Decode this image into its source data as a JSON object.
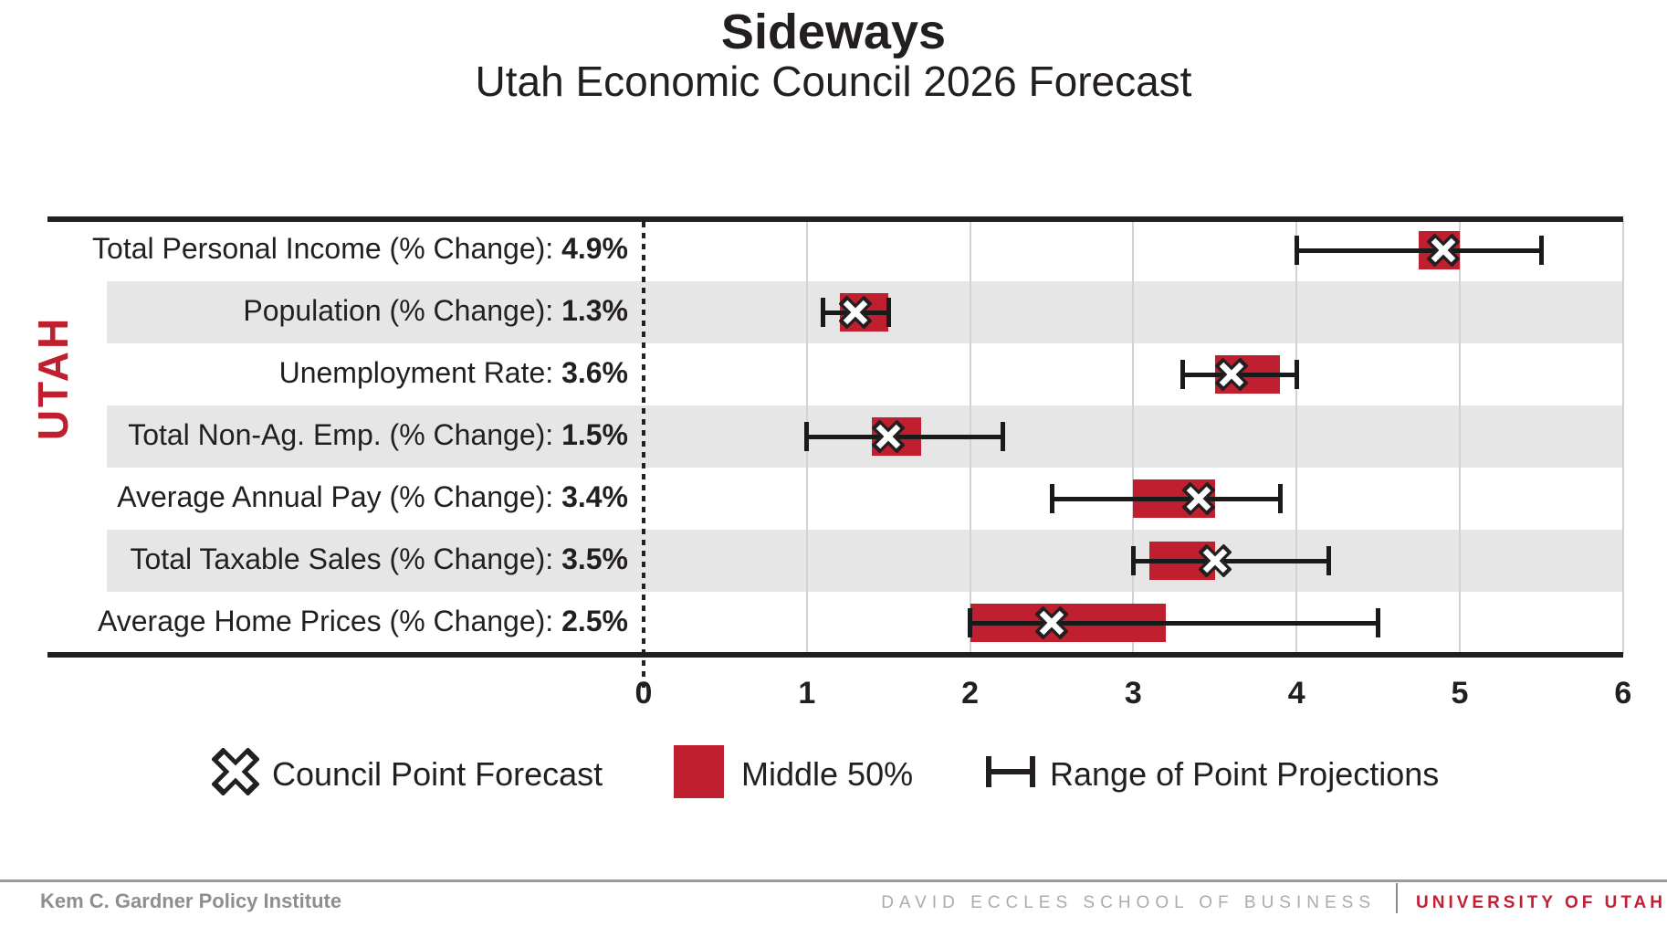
{
  "header": {
    "title": "Sideways",
    "subtitle": "Utah Economic Council 2026 Forecast"
  },
  "region_label": "UTAH",
  "colors": {
    "accent_red": "#c01f2f",
    "band_gray": "#e6e6e6",
    "line_black": "#231f20",
    "footer_red": "#c41e35"
  },
  "chart_data": {
    "type": "box-range-horizontal",
    "title": "Sideways",
    "subtitle": "Utah Economic Council 2026 Forecast",
    "x_axis": {
      "min": 0,
      "max": 6,
      "ticks": [
        0,
        1,
        2,
        3,
        4,
        5,
        6
      ],
      "grid": true
    },
    "rows": [
      {
        "label": "Total Personal Income (% Change)",
        "value_label": "4.9%",
        "point": 4.9,
        "middle50": [
          4.75,
          5.0
        ],
        "range": [
          4.0,
          5.5
        ]
      },
      {
        "label": "Population (% Change)",
        "value_label": "1.3%",
        "point": 1.3,
        "middle50": [
          1.2,
          1.5
        ],
        "range": [
          1.1,
          1.5
        ]
      },
      {
        "label": "Unemployment Rate",
        "value_label": "3.6%",
        "point": 3.6,
        "middle50": [
          3.5,
          3.9
        ],
        "range": [
          3.3,
          4.0
        ]
      },
      {
        "label": "Total Non-Ag. Emp. (% Change)",
        "value_label": "1.5%",
        "point": 1.5,
        "middle50": [
          1.4,
          1.7
        ],
        "range": [
          1.0,
          2.2
        ]
      },
      {
        "label": "Average Annual Pay (% Change)",
        "value_label": "3.4%",
        "point": 3.4,
        "middle50": [
          3.0,
          3.5
        ],
        "range": [
          2.5,
          3.9
        ]
      },
      {
        "label": "Total Taxable Sales (% Change)",
        "value_label": "3.5%",
        "point": 3.5,
        "middle50": [
          3.1,
          3.5
        ],
        "range": [
          3.0,
          4.2
        ]
      },
      {
        "label": "Average Home Prices (% Change)",
        "value_label": "2.5%",
        "point": 2.5,
        "middle50": [
          2.0,
          3.2
        ],
        "range": [
          2.0,
          4.5
        ]
      }
    ],
    "legend": [
      {
        "icon": "council-point-forecast-x-icon",
        "label": "Council Point Forecast"
      },
      {
        "icon": "middle-50-swatch",
        "label": "Middle 50%"
      },
      {
        "icon": "range-whisker-icon",
        "label": "Range of Point Projections"
      }
    ]
  },
  "footer": {
    "institute": "Kem C. Gardner Policy Institute",
    "school": "DAVID ECCLES SCHOOL OF BUSINESS",
    "university": "UNIVERSITY OF UTAH"
  }
}
